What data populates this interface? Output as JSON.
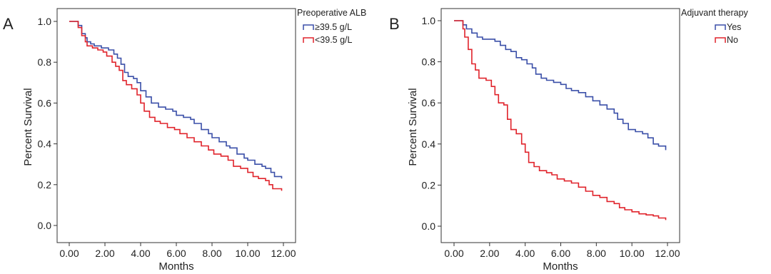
{
  "chart_data": [
    {
      "type": "line",
      "panel_label": "A",
      "xlabel": "Months",
      "ylabel": "Percent Survival",
      "xlim": [
        0,
        12
      ],
      "ylim": [
        0,
        1.0
      ],
      "x_tick_labels": [
        "0.00",
        "2.00",
        "4.00",
        "6.00",
        "8.00",
        "10.00",
        "12.00"
      ],
      "y_tick_labels": [
        "0.0",
        "0.2",
        "0.4",
        "0.6",
        "0.8",
        "1.0"
      ],
      "legend_title": "Preoperative ALB",
      "legend_position": "top-right",
      "series": [
        {
          "name": "≥39.5 g/L",
          "color": "#3a4fa8",
          "points": [
            [
              0,
              1.0
            ],
            [
              0.3,
              1.0
            ],
            [
              0.5,
              0.98
            ],
            [
              0.7,
              0.94
            ],
            [
              0.9,
              0.92
            ],
            [
              1.0,
              0.9
            ],
            [
              1.2,
              0.89
            ],
            [
              1.4,
              0.88
            ],
            [
              1.6,
              0.88
            ],
            [
              1.8,
              0.87
            ],
            [
              2.0,
              0.87
            ],
            [
              2.2,
              0.86
            ],
            [
              2.5,
              0.84
            ],
            [
              2.7,
              0.82
            ],
            [
              2.9,
              0.79
            ],
            [
              3.1,
              0.75
            ],
            [
              3.3,
              0.73
            ],
            [
              3.6,
              0.72
            ],
            [
              3.8,
              0.7
            ],
            [
              4.0,
              0.66
            ],
            [
              4.3,
              0.63
            ],
            [
              4.6,
              0.6
            ],
            [
              5.0,
              0.58
            ],
            [
              5.4,
              0.57
            ],
            [
              5.8,
              0.56
            ],
            [
              6.0,
              0.54
            ],
            [
              6.4,
              0.53
            ],
            [
              6.8,
              0.52
            ],
            [
              7.0,
              0.5
            ],
            [
              7.4,
              0.47
            ],
            [
              7.8,
              0.45
            ],
            [
              8.0,
              0.43
            ],
            [
              8.4,
              0.41
            ],
            [
              8.8,
              0.39
            ],
            [
              9.0,
              0.38
            ],
            [
              9.4,
              0.35
            ],
            [
              9.8,
              0.33
            ],
            [
              10.0,
              0.32
            ],
            [
              10.4,
              0.3
            ],
            [
              10.8,
              0.29
            ],
            [
              11.0,
              0.28
            ],
            [
              11.3,
              0.26
            ],
            [
              11.5,
              0.24
            ],
            [
              11.9,
              0.24
            ],
            [
              11.9,
              0.23
            ]
          ]
        },
        {
          "name": "<39.5 g/L",
          "color": "#e0232b",
          "points": [
            [
              0,
              1.0
            ],
            [
              0.3,
              1.0
            ],
            [
              0.5,
              0.97
            ],
            [
              0.7,
              0.93
            ],
            [
              0.9,
              0.9
            ],
            [
              1.0,
              0.88
            ],
            [
              1.3,
              0.87
            ],
            [
              1.6,
              0.86
            ],
            [
              1.9,
              0.85
            ],
            [
              2.1,
              0.83
            ],
            [
              2.4,
              0.8
            ],
            [
              2.6,
              0.78
            ],
            [
              2.8,
              0.76
            ],
            [
              3.0,
              0.71
            ],
            [
              3.2,
              0.69
            ],
            [
              3.5,
              0.67
            ],
            [
              3.8,
              0.64
            ],
            [
              4.0,
              0.6
            ],
            [
              4.2,
              0.56
            ],
            [
              4.5,
              0.53
            ],
            [
              4.8,
              0.51
            ],
            [
              5.1,
              0.5
            ],
            [
              5.5,
              0.48
            ],
            [
              5.9,
              0.47
            ],
            [
              6.2,
              0.45
            ],
            [
              6.6,
              0.43
            ],
            [
              7.0,
              0.41
            ],
            [
              7.4,
              0.39
            ],
            [
              7.8,
              0.37
            ],
            [
              8.1,
              0.35
            ],
            [
              8.5,
              0.34
            ],
            [
              8.9,
              0.32
            ],
            [
              9.2,
              0.29
            ],
            [
              9.6,
              0.28
            ],
            [
              10.0,
              0.26
            ],
            [
              10.3,
              0.24
            ],
            [
              10.6,
              0.23
            ],
            [
              11.0,
              0.22
            ],
            [
              11.2,
              0.2
            ],
            [
              11.4,
              0.18
            ],
            [
              11.9,
              0.18
            ],
            [
              11.9,
              0.17
            ]
          ]
        }
      ]
    },
    {
      "type": "line",
      "panel_label": "B",
      "xlabel": "Months",
      "ylabel": "Percent Survival",
      "xlim": [
        0,
        12
      ],
      "ylim": [
        0,
        1.0
      ],
      "x_tick_labels": [
        "0.00",
        "2.00",
        "4.00",
        "6.00",
        "8.00",
        "10.00",
        "12.00"
      ],
      "y_tick_labels": [
        "0.0",
        "0.2",
        "0.4",
        "0.6",
        "0.8",
        "1.0"
      ],
      "legend_title": "Adjuvant therapy",
      "legend_position": "top-right",
      "series": [
        {
          "name": "Yes",
          "color": "#3a4fa8",
          "points": [
            [
              0,
              1.0
            ],
            [
              0.3,
              1.0
            ],
            [
              0.5,
              0.98
            ],
            [
              0.7,
              0.96
            ],
            [
              1.0,
              0.94
            ],
            [
              1.3,
              0.92
            ],
            [
              1.6,
              0.91
            ],
            [
              2.0,
              0.91
            ],
            [
              2.3,
              0.9
            ],
            [
              2.6,
              0.88
            ],
            [
              2.9,
              0.86
            ],
            [
              3.2,
              0.85
            ],
            [
              3.5,
              0.82
            ],
            [
              3.8,
              0.81
            ],
            [
              4.1,
              0.79
            ],
            [
              4.4,
              0.77
            ],
            [
              4.6,
              0.74
            ],
            [
              4.9,
              0.72
            ],
            [
              5.2,
              0.71
            ],
            [
              5.6,
              0.7
            ],
            [
              6.0,
              0.69
            ],
            [
              6.3,
              0.67
            ],
            [
              6.6,
              0.66
            ],
            [
              7.0,
              0.65
            ],
            [
              7.4,
              0.63
            ],
            [
              7.8,
              0.61
            ],
            [
              8.2,
              0.59
            ],
            [
              8.6,
              0.57
            ],
            [
              9.0,
              0.55
            ],
            [
              9.2,
              0.52
            ],
            [
              9.5,
              0.5
            ],
            [
              9.8,
              0.47
            ],
            [
              10.2,
              0.46
            ],
            [
              10.6,
              0.45
            ],
            [
              10.9,
              0.43
            ],
            [
              11.2,
              0.4
            ],
            [
              11.5,
              0.39
            ],
            [
              11.8,
              0.39
            ],
            [
              11.9,
              0.37
            ]
          ]
        },
        {
          "name": "No",
          "color": "#e0232b",
          "points": [
            [
              0,
              1.0
            ],
            [
              0.3,
              1.0
            ],
            [
              0.5,
              0.96
            ],
            [
              0.6,
              0.92
            ],
            [
              0.8,
              0.86
            ],
            [
              1.0,
              0.79
            ],
            [
              1.2,
              0.76
            ],
            [
              1.4,
              0.72
            ],
            [
              1.8,
              0.71
            ],
            [
              2.1,
              0.68
            ],
            [
              2.3,
              0.64
            ],
            [
              2.5,
              0.6
            ],
            [
              2.8,
              0.59
            ],
            [
              3.0,
              0.52
            ],
            [
              3.2,
              0.47
            ],
            [
              3.5,
              0.45
            ],
            [
              3.8,
              0.4
            ],
            [
              4.0,
              0.36
            ],
            [
              4.2,
              0.31
            ],
            [
              4.5,
              0.29
            ],
            [
              4.8,
              0.27
            ],
            [
              5.2,
              0.26
            ],
            [
              5.5,
              0.25
            ],
            [
              5.8,
              0.23
            ],
            [
              6.2,
              0.22
            ],
            [
              6.6,
              0.21
            ],
            [
              7.0,
              0.19
            ],
            [
              7.4,
              0.17
            ],
            [
              7.8,
              0.15
            ],
            [
              8.2,
              0.14
            ],
            [
              8.6,
              0.12
            ],
            [
              9.0,
              0.11
            ],
            [
              9.3,
              0.09
            ],
            [
              9.6,
              0.08
            ],
            [
              10.0,
              0.07
            ],
            [
              10.4,
              0.06
            ],
            [
              10.8,
              0.055
            ],
            [
              11.2,
              0.05
            ],
            [
              11.5,
              0.04
            ],
            [
              11.9,
              0.035
            ],
            [
              11.9,
              0.03
            ]
          ]
        }
      ]
    }
  ]
}
